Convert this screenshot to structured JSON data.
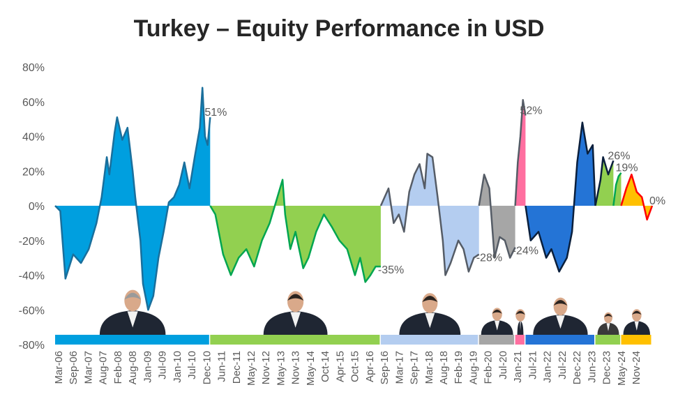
{
  "title": "Turkey – Equity Performance in USD",
  "chart_data": {
    "type": "area",
    "title": "Turkey – Equity Performance in USD",
    "ylim": [
      -80,
      80
    ],
    "yticks": [
      80,
      60,
      40,
      20,
      0,
      -20,
      -40,
      -60,
      -80
    ],
    "ytick_format": "percent",
    "xlim": [
      "2006-01",
      "2025-04"
    ],
    "x_tick_labels": [
      "Mar-06",
      "Sep-06",
      "Mar-07",
      "Aug-07",
      "Feb-08",
      "Aug-08",
      "Jan-09",
      "Jul-09",
      "Jan-10",
      "Jul-10",
      "Dec-10",
      "Jun-11",
      "Dec-11",
      "May-12",
      "Nov-12",
      "May-13",
      "Nov-13",
      "May-14",
      "Oct-14",
      "Apr-15",
      "Oct-15",
      "Apr-16",
      "Sep-16",
      "Mar-17",
      "Sep-17",
      "Mar-18",
      "Aug-18",
      "Feb-19",
      "Aug-19",
      "Feb-20",
      "Jul-20",
      "Jan-21",
      "Jul-21",
      "Jan-22",
      "Jul-22",
      "Dec-22",
      "Jun-23",
      "Dec-23",
      "May-24",
      "Nov-24"
    ],
    "grid": false,
    "legend": "none",
    "series": [
      {
        "start": "2006-01",
        "end": "2011-01",
        "fill": "#009fdf",
        "line": "#1a6f9c",
        "end_label": "51%",
        "points": [
          [
            "2006-01",
            0
          ],
          [
            "2006-03",
            -3
          ],
          [
            "2006-05",
            -42
          ],
          [
            "2006-08",
            -28
          ],
          [
            "2006-11",
            -33
          ],
          [
            "2007-02",
            -25
          ],
          [
            "2007-05",
            -10
          ],
          [
            "2007-07",
            5
          ],
          [
            "2007-09",
            28
          ],
          [
            "2007-10",
            18
          ],
          [
            "2007-12",
            42
          ],
          [
            "2008-01",
            51
          ],
          [
            "2008-03",
            38
          ],
          [
            "2008-05",
            45
          ],
          [
            "2008-07",
            20
          ],
          [
            "2008-08",
            5
          ],
          [
            "2008-10",
            -20
          ],
          [
            "2008-11",
            -45
          ],
          [
            "2009-01",
            -60
          ],
          [
            "2009-03",
            -52
          ],
          [
            "2009-05",
            -30
          ],
          [
            "2009-07",
            -15
          ],
          [
            "2009-09",
            2
          ],
          [
            "2009-11",
            5
          ],
          [
            "2010-01",
            12
          ],
          [
            "2010-03",
            25
          ],
          [
            "2010-05",
            10
          ],
          [
            "2010-07",
            28
          ],
          [
            "2010-09",
            45
          ],
          [
            "2010-10",
            68
          ],
          [
            "2010-11",
            40
          ],
          [
            "2010-12",
            35
          ],
          [
            "2011-01",
            51
          ]
        ]
      },
      {
        "start": "2011-01",
        "end": "2016-07",
        "fill": "#92d050",
        "line": "#00a550",
        "end_label": "-35%",
        "points": [
          [
            "2011-01",
            0
          ],
          [
            "2011-03",
            -5
          ],
          [
            "2011-06",
            -28
          ],
          [
            "2011-09",
            -40
          ],
          [
            "2011-12",
            -30
          ],
          [
            "2012-03",
            -25
          ],
          [
            "2012-06",
            -35
          ],
          [
            "2012-09",
            -20
          ],
          [
            "2012-12",
            -10
          ],
          [
            "2013-03",
            5
          ],
          [
            "2013-05",
            15
          ],
          [
            "2013-06",
            -5
          ],
          [
            "2013-08",
            -25
          ],
          [
            "2013-10",
            -15
          ],
          [
            "2014-01",
            -36
          ],
          [
            "2014-03",
            -30
          ],
          [
            "2014-06",
            -15
          ],
          [
            "2014-09",
            -5
          ],
          [
            "2014-12",
            -12
          ],
          [
            "2015-03",
            -20
          ],
          [
            "2015-06",
            -25
          ],
          [
            "2015-09",
            -40
          ],
          [
            "2015-11",
            -30
          ],
          [
            "2016-01",
            -44
          ],
          [
            "2016-03",
            -40
          ],
          [
            "2016-05",
            -35
          ],
          [
            "2016-07",
            -35
          ]
        ]
      },
      {
        "start": "2016-07",
        "end": "2019-09",
        "fill": "#b4cdf0",
        "line": "#555c66",
        "end_label": "-28%",
        "points": [
          [
            "2016-07",
            0
          ],
          [
            "2016-10",
            10
          ],
          [
            "2016-12",
            -10
          ],
          [
            "2017-02",
            -5
          ],
          [
            "2017-04",
            -15
          ],
          [
            "2017-06",
            8
          ],
          [
            "2017-08",
            18
          ],
          [
            "2017-10",
            24
          ],
          [
            "2017-12",
            10
          ],
          [
            "2018-01",
            30
          ],
          [
            "2018-03",
            28
          ],
          [
            "2018-05",
            5
          ],
          [
            "2018-07",
            -20
          ],
          [
            "2018-08",
            -40
          ],
          [
            "2018-10",
            -33
          ],
          [
            "2019-01",
            -20
          ],
          [
            "2019-03",
            -25
          ],
          [
            "2019-05",
            -38
          ],
          [
            "2019-07",
            -30
          ],
          [
            "2019-09",
            -28
          ]
        ]
      },
      {
        "start": "2019-09",
        "end": "2020-11",
        "fill": "#a6a6a6",
        "line": "#555c66",
        "end_label": "-24%",
        "points": [
          [
            "2019-09",
            0
          ],
          [
            "2019-11",
            18
          ],
          [
            "2020-01",
            10
          ],
          [
            "2020-03",
            -30
          ],
          [
            "2020-05",
            -18
          ],
          [
            "2020-07",
            -20
          ],
          [
            "2020-09",
            -30
          ],
          [
            "2020-11",
            -24
          ]
        ]
      },
      {
        "start": "2020-11",
        "end": "2021-03",
        "fill": "#ff6fa0",
        "line": "#555c66",
        "end_label": "52%",
        "points": [
          [
            "2020-11",
            0
          ],
          [
            "2020-12",
            25
          ],
          [
            "2021-01",
            40
          ],
          [
            "2021-02",
            61
          ],
          [
            "2021-03",
            52
          ]
        ]
      },
      {
        "start": "2021-03",
        "end": "2023-06",
        "fill": "#2474d6",
        "line": "#0a1f3c",
        "end_label": "",
        "points": [
          [
            "2021-03",
            0
          ],
          [
            "2021-05",
            -20
          ],
          [
            "2021-08",
            -15
          ],
          [
            "2021-11",
            -30
          ],
          [
            "2022-01",
            -25
          ],
          [
            "2022-04",
            -38
          ],
          [
            "2022-07",
            -30
          ],
          [
            "2022-09",
            -15
          ],
          [
            "2022-11",
            25
          ],
          [
            "2023-01",
            48
          ],
          [
            "2023-03",
            30
          ],
          [
            "2023-05",
            35
          ],
          [
            "2023-06",
            0
          ]
        ]
      },
      {
        "start": "2023-06",
        "end": "2024-01",
        "fill": "#92d050",
        "line": "#0a1f3c",
        "end_label": "26%",
        "points": [
          [
            "2023-06",
            0
          ],
          [
            "2023-08",
            15
          ],
          [
            "2023-09",
            28
          ],
          [
            "2023-11",
            18
          ],
          [
            "2024-01",
            26
          ]
        ]
      },
      {
        "start": "2024-01",
        "end": "2024-04",
        "fill": "#92d050",
        "line": "#00a550",
        "end_label": "19%",
        "points": [
          [
            "2024-01",
            0
          ],
          [
            "2024-02",
            12
          ],
          [
            "2024-03",
            17
          ],
          [
            "2024-04",
            19
          ]
        ]
      },
      {
        "start": "2024-04",
        "end": "2025-04",
        "fill": "#ffc000",
        "line": "#ff0000",
        "end_label": "0%",
        "points": [
          [
            "2024-04",
            0
          ],
          [
            "2024-06",
            10
          ],
          [
            "2024-08",
            18
          ],
          [
            "2024-10",
            8
          ],
          [
            "2024-12",
            5
          ],
          [
            "2025-02",
            -8
          ],
          [
            "2025-04",
            0
          ]
        ]
      }
    ],
    "bottom_bands": [
      {
        "start": "2006-01",
        "end": "2011-01",
        "color": "#009fdf",
        "portrait": "dark-suit-grey-hair"
      },
      {
        "start": "2011-01",
        "end": "2016-07",
        "color": "#92d050",
        "portrait": "dark-suit"
      },
      {
        "start": "2016-07",
        "end": "2019-09",
        "color": "#b4cdf0",
        "portrait": "dark-suit"
      },
      {
        "start": "2019-09",
        "end": "2020-11",
        "color": "#a6a6a6",
        "portrait": "dark-suit"
      },
      {
        "start": "2020-11",
        "end": "2021-03",
        "color": "#ff6fa0",
        "portrait": "dark-suit"
      },
      {
        "start": "2021-03",
        "end": "2023-06",
        "color": "#2474d6",
        "portrait": "dark-suit"
      },
      {
        "start": "2023-06",
        "end": "2024-04",
        "color": "#92d050",
        "portrait": "woman-dark-jacket"
      },
      {
        "start": "2024-04",
        "end": "2025-04",
        "color": "#ffc000",
        "portrait": "dark-suit"
      }
    ]
  }
}
